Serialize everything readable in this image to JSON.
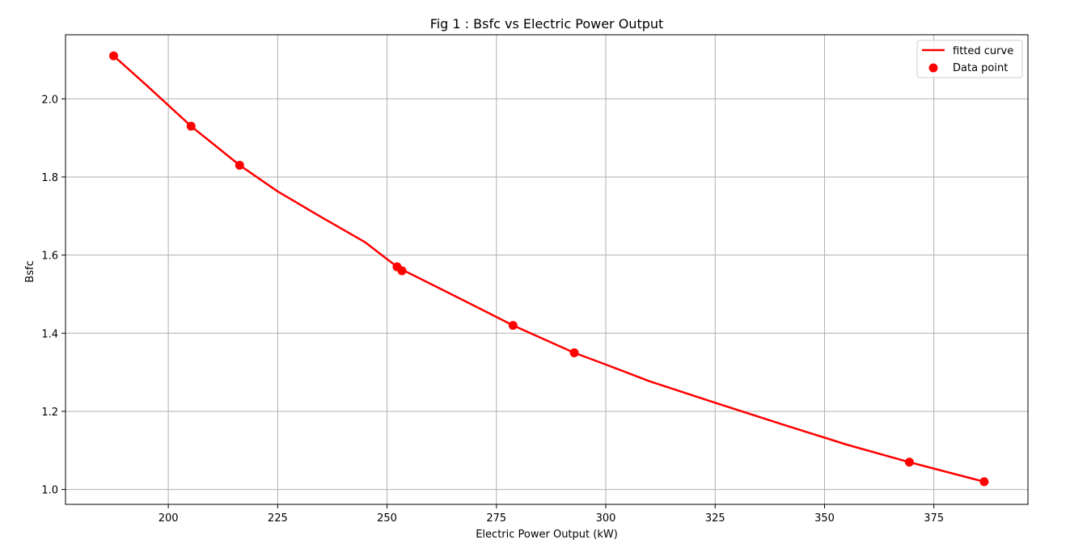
{
  "chart_data": {
    "type": "line",
    "title": "Fig 1 : Bsfc vs Electric Power Output",
    "xlabel": "Electric Power Output (kW)",
    "ylabel": "Bsfc",
    "xlim": [
      176.5,
      396.5
    ],
    "ylim": [
      0.962,
      2.164
    ],
    "xticks": [
      200,
      225,
      250,
      275,
      300,
      325,
      350,
      375
    ],
    "yticks": [
      1.0,
      1.2,
      1.4,
      1.6,
      1.8,
      2.0
    ],
    "xtick_labels": [
      "200",
      "225",
      "250",
      "275",
      "300",
      "325",
      "350",
      "375"
    ],
    "ytick_labels": [
      "1.0",
      "1.2",
      "1.4",
      "1.6",
      "1.8",
      "2.0"
    ],
    "grid": true,
    "legend_position": "top-right",
    "series": [
      {
        "name": "fitted curve",
        "kind": "line",
        "color": "#ff0000",
        "x": [
          187.5,
          195,
          205.2,
          216.3,
          225,
          235,
          245,
          252.3,
          253.4,
          262,
          270,
          278.8,
          292.8,
          300,
          310,
          325,
          340,
          355,
          369.4,
          386.5
        ],
        "y": [
          2.11,
          2.035,
          1.93,
          1.83,
          1.763,
          1.697,
          1.633,
          1.57,
          1.563,
          1.515,
          1.47,
          1.42,
          1.35,
          1.32,
          1.277,
          1.222,
          1.168,
          1.115,
          1.07,
          1.02
        ]
      },
      {
        "name": "Data point",
        "kind": "scatter",
        "color": "#ff0000",
        "x": [
          187.5,
          205.2,
          216.3,
          252.3,
          253.4,
          278.8,
          292.8,
          369.4,
          386.5
        ],
        "y": [
          2.11,
          1.93,
          1.83,
          1.57,
          1.56,
          1.42,
          1.35,
          1.07,
          1.02
        ]
      }
    ]
  }
}
